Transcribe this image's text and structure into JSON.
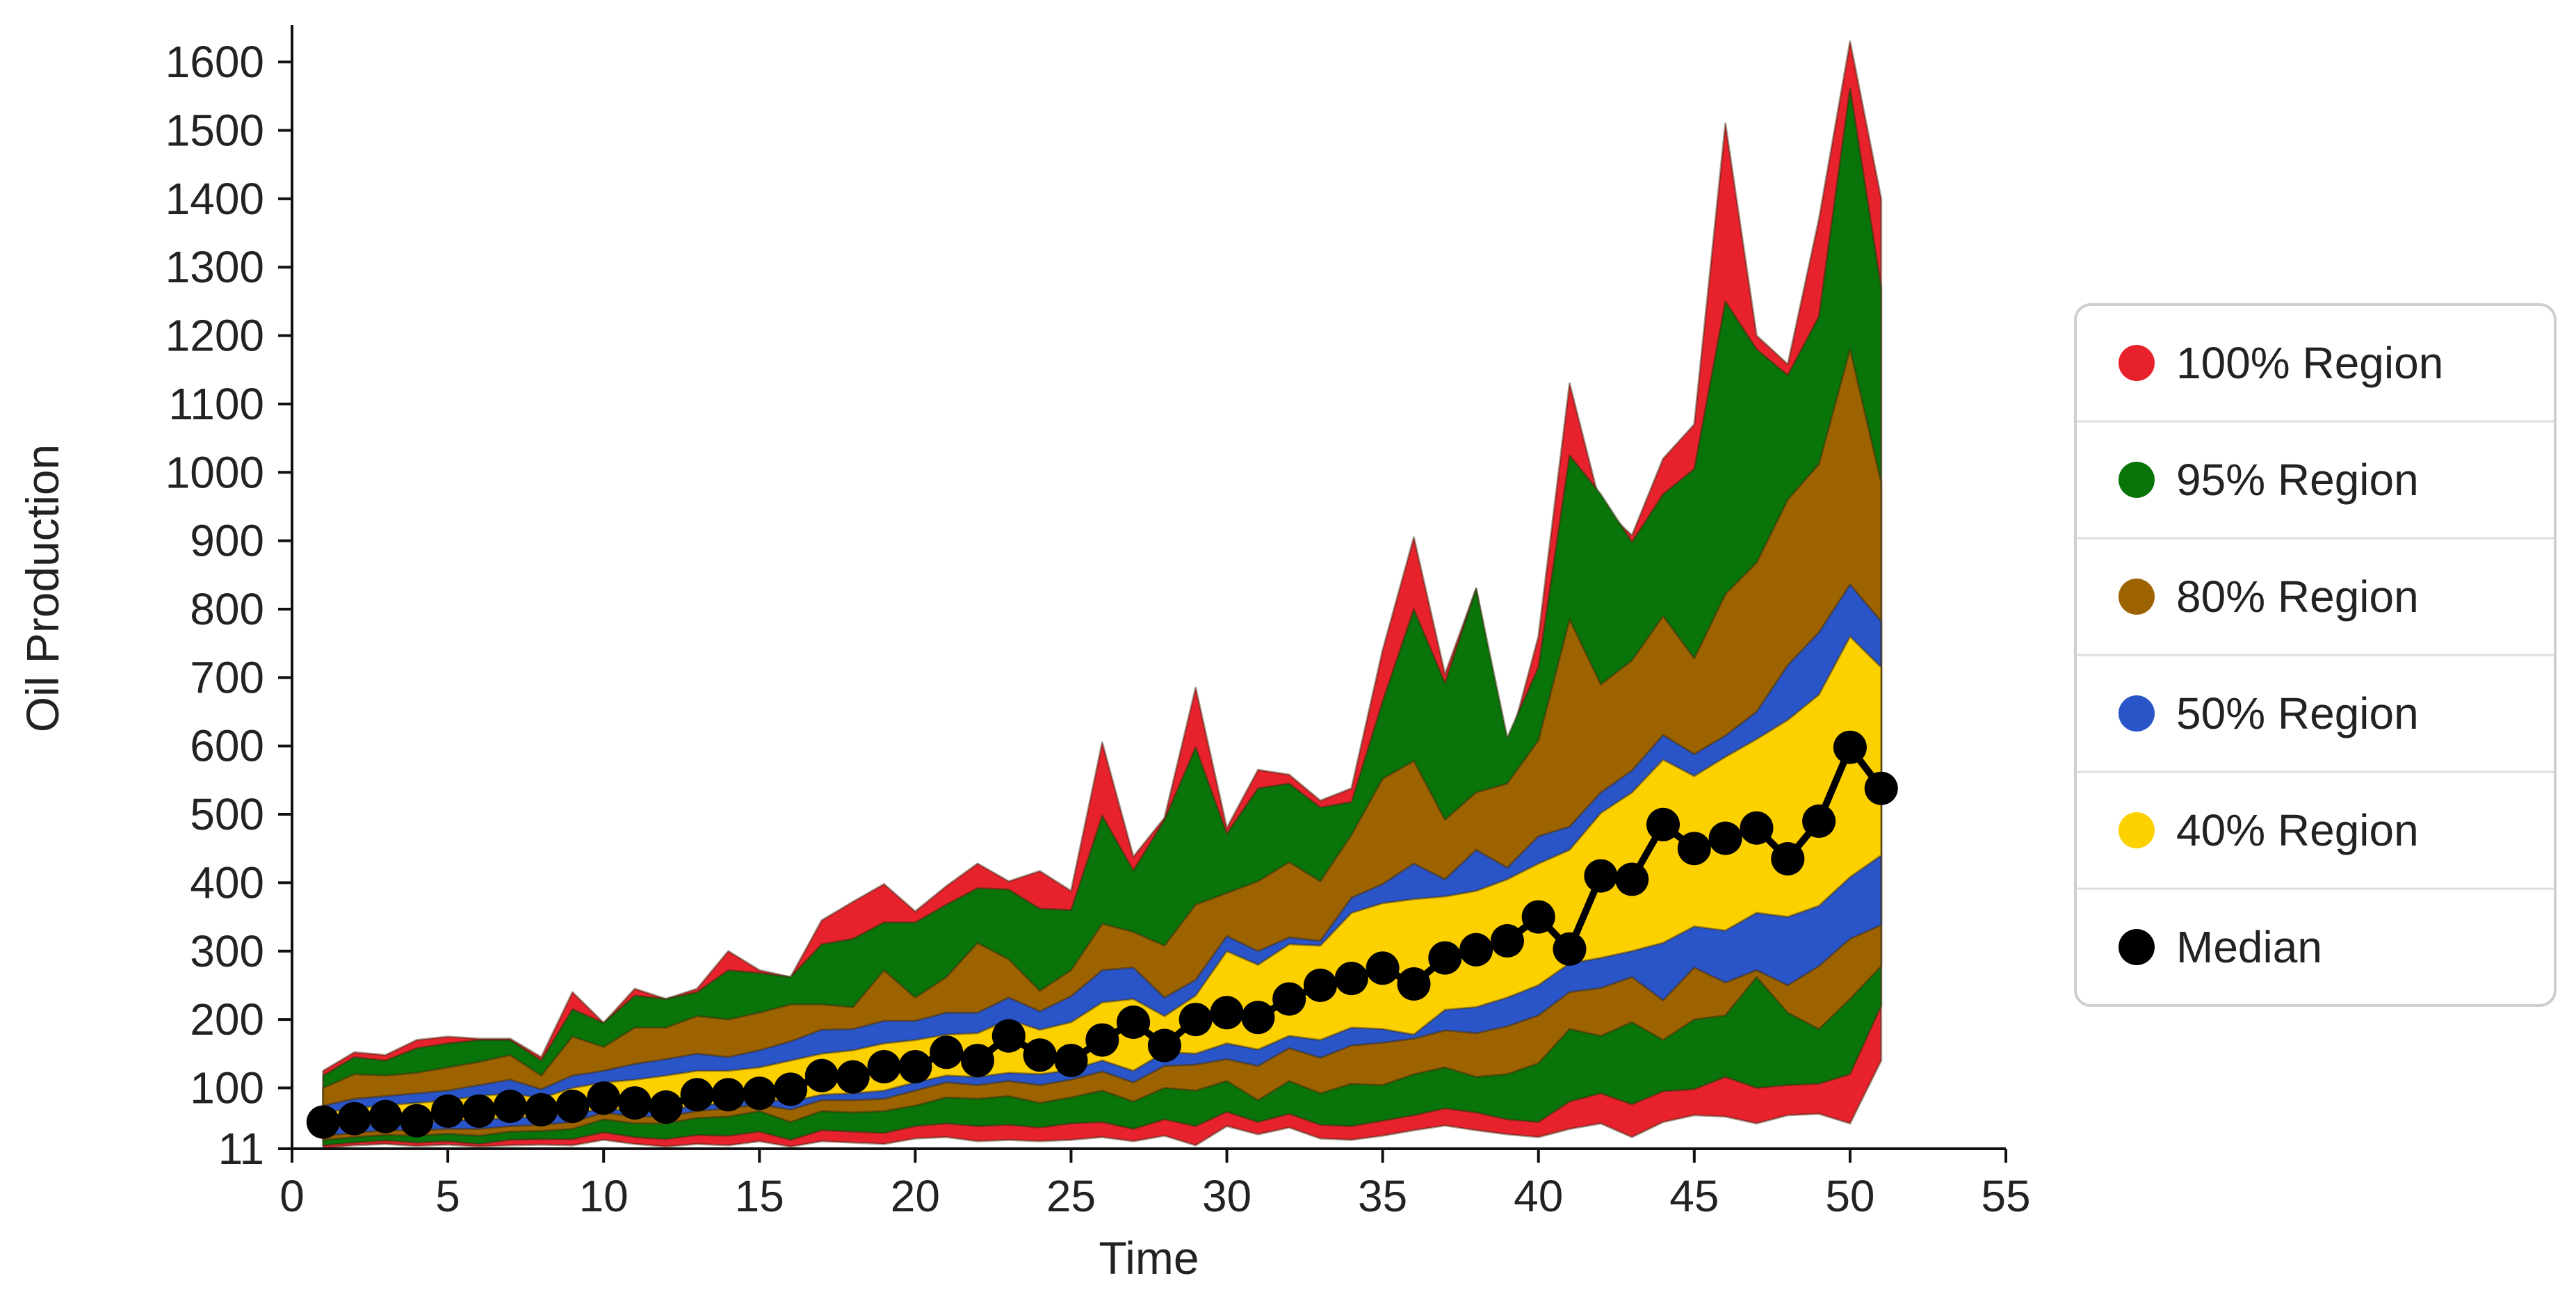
{
  "chart_data": {
    "type": "area",
    "xlabel": "Time",
    "ylabel": "Oil Production",
    "xlim": [
      0,
      55
    ],
    "ylim": [
      11,
      1650
    ],
    "x_ticks": [
      0,
      5,
      10,
      15,
      20,
      25,
      30,
      35,
      40,
      45,
      50,
      55
    ],
    "y_ticks": [
      11,
      100,
      200,
      300,
      400,
      500,
      600,
      700,
      800,
      900,
      1000,
      1100,
      1200,
      1300,
      1400,
      1500,
      1600
    ],
    "legend_position": "right",
    "grid": false,
    "x": [
      1,
      2,
      3,
      4,
      5,
      6,
      7,
      8,
      9,
      10,
      11,
      12,
      13,
      14,
      15,
      16,
      17,
      18,
      19,
      20,
      21,
      22,
      23,
      24,
      25,
      26,
      27,
      28,
      29,
      30,
      31,
      32,
      33,
      34,
      35,
      36,
      37,
      38,
      39,
      40,
      41,
      42,
      43,
      44,
      45,
      46,
      47,
      48,
      49,
      50,
      51
    ],
    "bands": [
      {
        "name": "100% Region",
        "color": "#e8222d",
        "upper": [
          125,
          152,
          148,
          170,
          175,
          172,
          172,
          145,
          240,
          195,
          245,
          230,
          245,
          300,
          272,
          262,
          345,
          372,
          398,
          358,
          395,
          428,
          402,
          417,
          388,
          605,
          438,
          495,
          685,
          480,
          565,
          558,
          520,
          538,
          740,
          905,
          705,
          830,
          590,
          760,
          1130,
          950,
          908,
          1020,
          1070,
          1510,
          1200,
          1158,
          1370,
          1630,
          1400
        ],
        "lower": [
          12,
          16,
          18,
          15,
          17,
          14,
          16,
          17,
          16,
          24,
          18,
          14,
          18,
          16,
          22,
          14,
          22,
          20,
          18,
          26,
          28,
          22,
          24,
          22,
          24,
          28,
          22,
          30,
          16,
          44,
          32,
          42,
          26,
          24,
          30,
          38,
          45,
          38,
          32,
          28,
          40,
          48,
          28,
          50,
          60,
          58,
          48,
          60,
          62,
          48,
          140
        ]
      },
      {
        "name": "95% Region",
        "color": "#097409",
        "upper": [
          118,
          145,
          140,
          158,
          165,
          170,
          170,
          140,
          215,
          195,
          235,
          230,
          240,
          272,
          268,
          262,
          310,
          318,
          342,
          342,
          368,
          392,
          390,
          362,
          360,
          498,
          418,
          492,
          598,
          472,
          538,
          545,
          510,
          518,
          665,
          800,
          692,
          830,
          612,
          715,
          1025,
          968,
          898,
          968,
          1005,
          1250,
          1180,
          1142,
          1228,
          1562,
          1270
        ],
        "lower": [
          16,
          20,
          23,
          20,
          22,
          18,
          24,
          25,
          25,
          35,
          28,
          25,
          31,
          30,
          36,
          24,
          38,
          36,
          34,
          44,
          48,
          44,
          46,
          42,
          48,
          50,
          40,
          54,
          44,
          65,
          50,
          62,
          46,
          44,
          52,
          60,
          70,
          64,
          54,
          50,
          80,
          92,
          76,
          95,
          98,
          116,
          100,
          104,
          106,
          120,
          220
        ]
      },
      {
        "name": "80% Region",
        "color": "#9c6300",
        "upper": [
          100,
          120,
          118,
          122,
          130,
          138,
          148,
          118,
          175,
          160,
          188,
          188,
          205,
          200,
          210,
          222,
          222,
          218,
          272,
          232,
          262,
          312,
          288,
          242,
          272,
          340,
          328,
          308,
          368,
          385,
          402,
          430,
          402,
          470,
          552,
          578,
          492,
          532,
          545,
          608,
          785,
          690,
          725,
          790,
          728,
          822,
          868,
          960,
          1012,
          1180,
          985
        ],
        "lower": [
          24,
          28,
          31,
          30,
          33,
          30,
          36,
          37,
          40,
          54,
          48,
          48,
          56,
          58,
          66,
          50,
          66,
          64,
          66,
          74,
          86,
          84,
          88,
          78,
          86,
          96,
          80,
          100,
          96,
          110,
          82,
          110,
          92,
          106,
          104,
          120,
          130,
          116,
          120,
          136,
          186,
          176,
          196,
          170,
          200,
          206,
          262,
          210,
          186,
          230,
          278
        ]
      },
      {
        "name": "50% Region",
        "color": "#2a55c9",
        "upper": [
          74,
          84,
          88,
          92,
          96,
          104,
          112,
          98,
          118,
          125,
          135,
          142,
          150,
          145,
          155,
          168,
          185,
          186,
          198,
          198,
          210,
          210,
          232,
          212,
          234,
          272,
          276,
          232,
          258,
          322,
          300,
          320,
          315,
          378,
          398,
          428,
          405,
          448,
          422,
          468,
          482,
          532,
          564,
          616,
          588,
          615,
          650,
          718,
          766,
          836,
          782
        ],
        "lower": [
          30,
          34,
          38,
          38,
          40,
          40,
          44,
          46,
          50,
          64,
          58,
          58,
          66,
          70,
          76,
          68,
          82,
          82,
          84,
          96,
          108,
          104,
          110,
          104,
          112,
          124,
          108,
          132,
          134,
          142,
          132,
          158,
          144,
          162,
          166,
          172,
          184,
          180,
          190,
          206,
          240,
          246,
          262,
          228,
          276,
          254,
          272,
          250,
          278,
          318,
          338
        ]
      },
      {
        "name": "40% Region",
        "color": "#fdd000",
        "upper": [
          64,
          70,
          75,
          78,
          82,
          88,
          92,
          85,
          100,
          108,
          112,
          118,
          125,
          125,
          130,
          140,
          150,
          155,
          165,
          170,
          178,
          180,
          200,
          185,
          196,
          225,
          230,
          205,
          235,
          300,
          280,
          310,
          308,
          356,
          370,
          376,
          380,
          388,
          405,
          428,
          448,
          502,
          532,
          580,
          556,
          584,
          610,
          638,
          675,
          760,
          715
        ],
        "lower": [
          40,
          44,
          48,
          50,
          52,
          54,
          56,
          58,
          62,
          70,
          66,
          68,
          74,
          78,
          84,
          80,
          90,
          92,
          96,
          108,
          118,
          116,
          122,
          120,
          126,
          140,
          125,
          152,
          150,
          165,
          156,
          176,
          170,
          188,
          186,
          178,
          214,
          218,
          232,
          250,
          282,
          290,
          300,
          312,
          336,
          330,
          356,
          350,
          366,
          408,
          440
        ]
      }
    ],
    "median": {
      "name": "Median",
      "color": "#000000",
      "values": [
        50,
        55,
        58,
        52,
        66,
        66,
        73,
        68,
        73,
        85,
        78,
        72,
        90,
        90,
        92,
        98,
        118,
        116,
        131,
        131,
        152,
        140,
        176,
        148,
        140,
        170,
        196,
        162,
        200,
        210,
        203,
        230,
        250,
        260,
        275,
        252,
        290,
        302,
        315,
        350,
        303,
        410,
        405,
        485,
        450,
        465,
        480,
        435,
        490,
        598,
        538
      ]
    }
  },
  "legend": {
    "items": [
      {
        "label": "100% Region",
        "color": "#e8222d"
      },
      {
        "label": "95% Region",
        "color": "#097409"
      },
      {
        "label": "80% Region",
        "color": "#9c6300"
      },
      {
        "label": "50% Region",
        "color": "#2a55c9"
      },
      {
        "label": "40% Region",
        "color": "#fdd000"
      },
      {
        "label": "Median",
        "color": "#000000"
      }
    ]
  }
}
